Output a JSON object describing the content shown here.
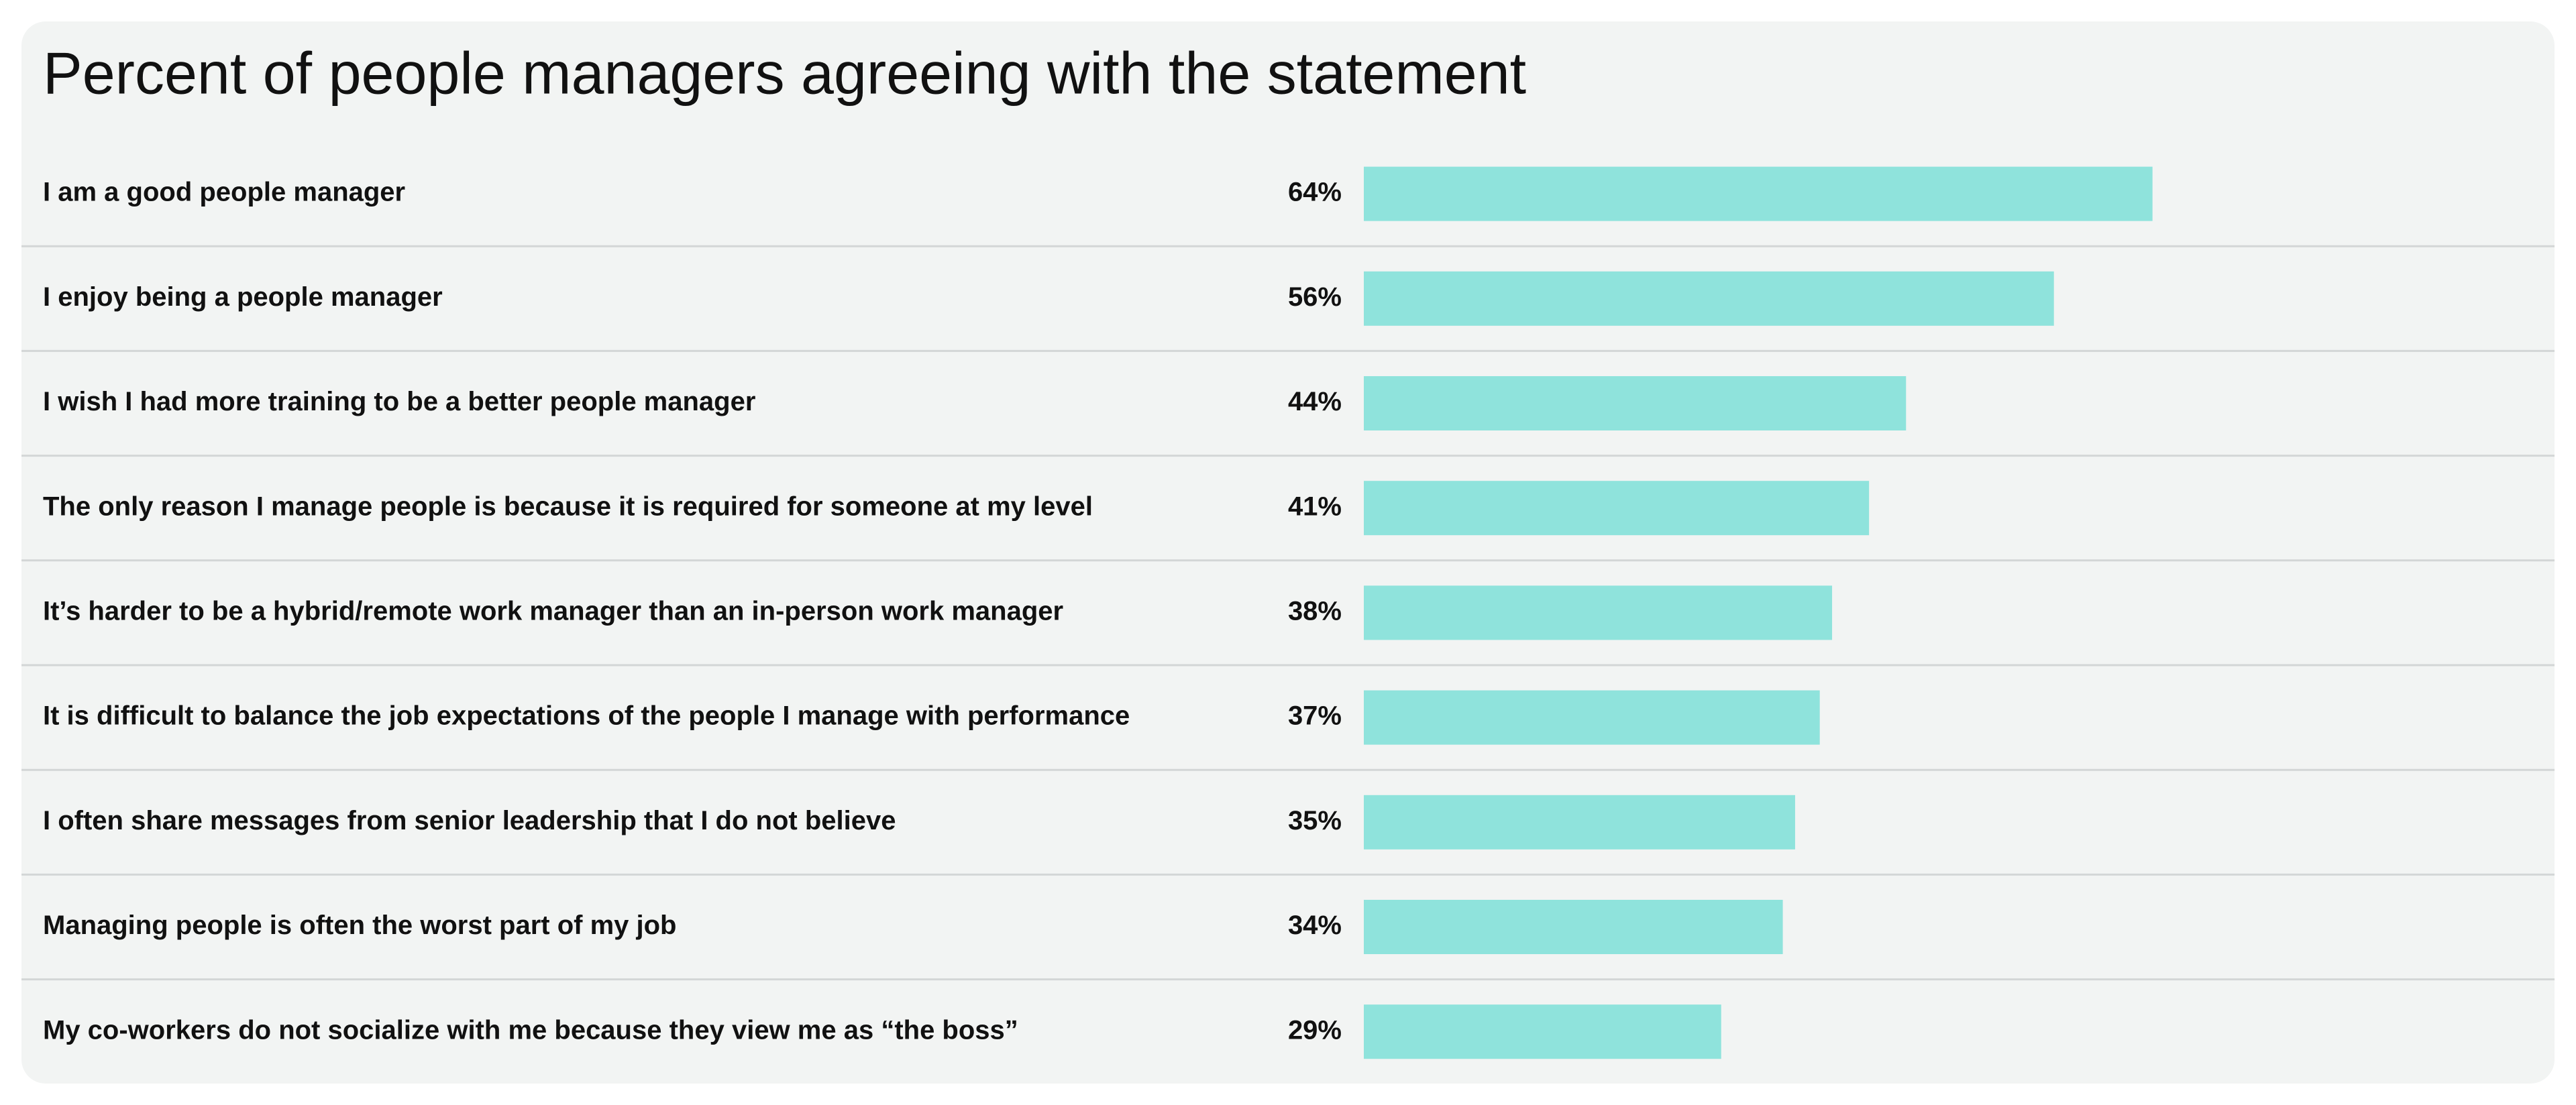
{
  "chart_data": {
    "type": "bar",
    "orientation": "horizontal",
    "title": "Percent of people managers agreeing with the statement",
    "categories": [
      "I am a good people manager",
      "I enjoy being a people manager",
      "I wish I had more training to be a better people manager",
      "The only reason I manage people is because it is required for someone at my level",
      "It’s harder to be a hybrid/remote work manager than an in-person work manager",
      "It is difficult to balance the job expectations of the people I manage with performance",
      "I often share messages from senior leadership that I do not believe",
      "Managing people is often the worst part of my job",
      "My co-workers do not socialize with me because they view me as “the boss”"
    ],
    "values": [
      64,
      56,
      44,
      41,
      38,
      37,
      35,
      34,
      29
    ],
    "value_labels": [
      "64%",
      "56%",
      "44%",
      "41%",
      "38%",
      "37%",
      "35%",
      "34%",
      "29%"
    ],
    "color": "#8fe3dc"
  }
}
